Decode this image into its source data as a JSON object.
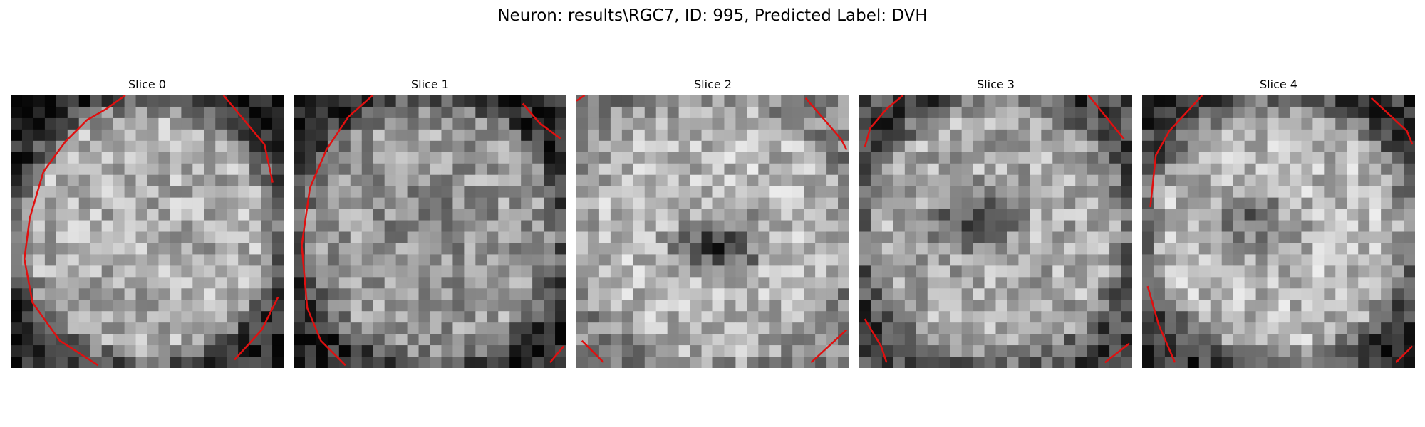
{
  "figure": {
    "title": "Neuron: results\\RGC7, ID: 995, Predicted Label: DVH"
  },
  "panels": [
    {
      "title": "Slice 0"
    },
    {
      "title": "Slice 1"
    },
    {
      "title": "Slice 2"
    },
    {
      "title": "Slice 3"
    },
    {
      "title": "Slice 4"
    }
  ],
  "colors": {
    "background": "#ffffff",
    "contour": "#e01010",
    "colormap": "grayscale"
  }
}
